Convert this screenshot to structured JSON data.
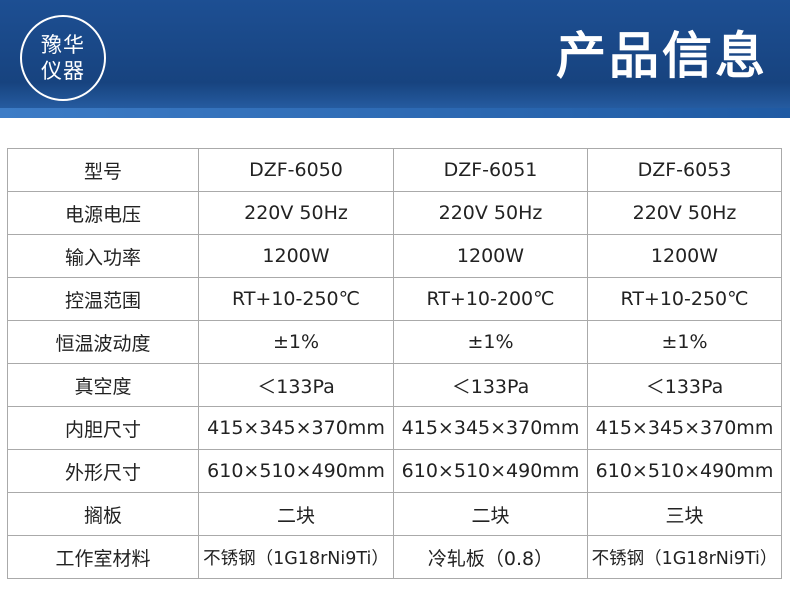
{
  "header": {
    "logo": [
      "豫华",
      "仪器"
    ],
    "title": "产品信息"
  },
  "table": {
    "rows": [
      [
        "型号",
        "DZF-6050",
        "DZF-6051",
        "DZF-6053"
      ],
      [
        "电源电压",
        "220V 50Hz",
        "220V 50Hz",
        "220V 50Hz"
      ],
      [
        "输入功率",
        "1200W",
        "1200W",
        "1200W"
      ],
      [
        "控温范围",
        "RT+10-250℃",
        "RT+10-200℃",
        "RT+10-250℃"
      ],
      [
        "恒温波动度",
        "±1%",
        "±1%",
        "±1%"
      ],
      [
        "真空度",
        "＜133Pa",
        "＜133Pa",
        "＜133Pa"
      ],
      [
        "内胆尺寸",
        "415×345×370mm",
        "415×345×370mm",
        "415×345×370mm"
      ],
      [
        "外形尺寸",
        "610×510×490mm",
        "610×510×490mm",
        "610×510×490mm"
      ],
      [
        "搁板",
        "二块",
        "二块",
        "三块"
      ],
      [
        "工作室材料",
        "不锈钢（1G18rNi9Ti）",
        "冷轧板（0.8）",
        "不锈钢（1G18rNi9Ti）"
      ]
    ]
  }
}
